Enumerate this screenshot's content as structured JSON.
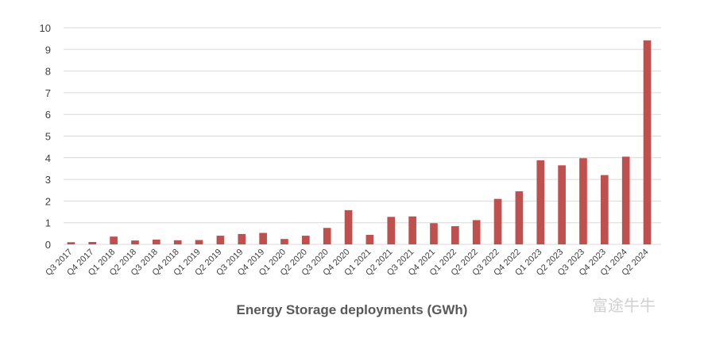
{
  "chart_data": {
    "type": "bar",
    "title": "Energy Storage deployments (GWh)",
    "categories": [
      "Q3 2017",
      "Q4 2017",
      "Q1 2018",
      "Q2 2018",
      "Q3 2018",
      "Q4 2018",
      "Q1 2019",
      "Q2 2019",
      "Q3 2019",
      "Q4 2019",
      "Q1 2020",
      "Q2 2020",
      "Q3 2020",
      "Q4 2020",
      "Q1 2021",
      "Q2 2021",
      "Q3 2021",
      "Q4 2021",
      "Q1 2022",
      "Q2 2022",
      "Q3 2022",
      "Q4 2022",
      "Q1 2023",
      "Q2 2023",
      "Q3 2023",
      "Q4 2023",
      "Q1 2024",
      "Q2 2024"
    ],
    "values": [
      0.1,
      0.11,
      0.36,
      0.18,
      0.22,
      0.19,
      0.2,
      0.4,
      0.48,
      0.53,
      0.25,
      0.4,
      0.76,
      1.58,
      0.44,
      1.27,
      1.29,
      0.98,
      0.84,
      1.12,
      2.1,
      2.45,
      3.88,
      3.65,
      3.98,
      3.2,
      4.05,
      9.42
    ],
    "color": "#c0504d",
    "ylim": [
      0,
      10
    ],
    "yticks": [
      0,
      1,
      2,
      3,
      4,
      5,
      6,
      7,
      8,
      9,
      10
    ],
    "grid": true,
    "watermark": "富途牛牛"
  }
}
